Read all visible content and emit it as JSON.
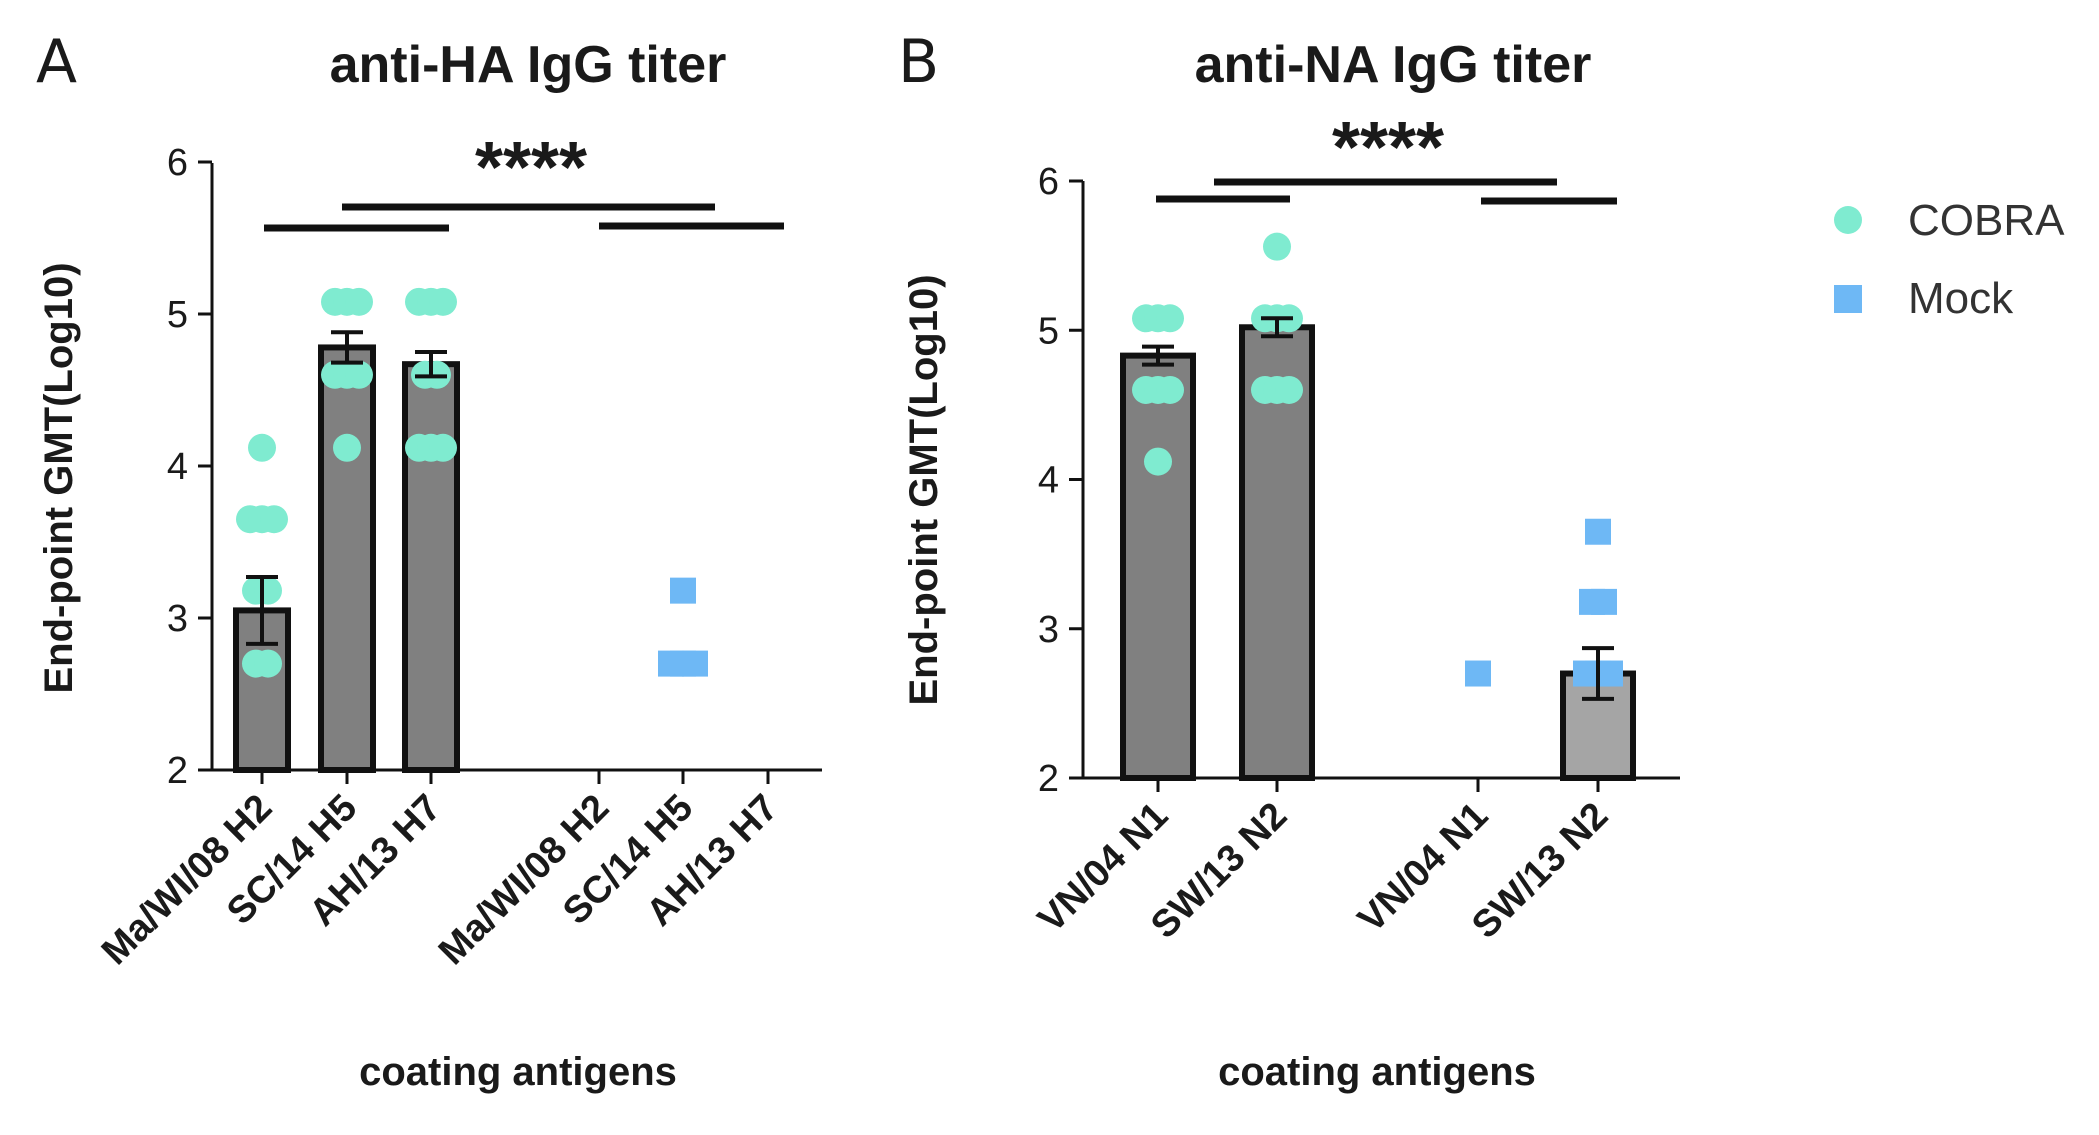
{
  "figure_colors": {
    "cobra": "#7FEBD0",
    "mock": "#6EB8F5",
    "bar_cobra": "#808080",
    "bar_mock": "#A5A5A5",
    "ink": "#111111"
  },
  "legend": {
    "items": [
      {
        "label": "COBRA",
        "marker": "circle",
        "color": "#7FEBD0"
      },
      {
        "label": "Mock",
        "marker": "square",
        "color": "#6EB8F5"
      }
    ]
  },
  "chart_data": [
    {
      "type": "bar",
      "panel": "A",
      "title": "anti-HA IgG titer",
      "xlabel": "coating antigens",
      "ylabel": "End-point GMT(Log10)",
      "ylim": [
        2,
        6
      ],
      "yticks": [
        "2",
        "3",
        "4",
        "5",
        "6"
      ],
      "categories": [
        "Ma/WI/08 H2",
        "SC/14 H5",
        "AH/13 H7",
        "Ma/WI/08 H2",
        "SC/14 H5",
        "AH/13 H7"
      ],
      "groups": [
        "COBRA",
        "COBRA",
        "COBRA",
        "Mock",
        "Mock",
        "Mock"
      ],
      "means": [
        3.05,
        4.78,
        4.67,
        null,
        null,
        null
      ],
      "sem": [
        0.22,
        0.1,
        0.08,
        null,
        null,
        null
      ],
      "points": [
        [
          4.12,
          3.65,
          3.65,
          3.65,
          3.18,
          3.18,
          2.7,
          2.7
        ],
        [
          5.08,
          5.08,
          5.08,
          4.6,
          4.6,
          4.6,
          4.12
        ],
        [
          5.08,
          5.08,
          5.08,
          4.6,
          4.6,
          4.12,
          4.12,
          4.12
        ],
        [],
        [
          3.18,
          2.7,
          2.7,
          2.7
        ],
        []
      ],
      "significance": "****",
      "comparison_bracket_count": 3
    },
    {
      "type": "bar",
      "panel": "B",
      "title": "anti-NA IgG titer",
      "xlabel": "coating antigens",
      "ylabel": "End-point GMT(Log10)",
      "ylim": [
        2,
        6
      ],
      "yticks": [
        "2",
        "3",
        "4",
        "5",
        "6"
      ],
      "categories": [
        "VN/04 N1",
        "SW/13 N2",
        "VN/04 N1",
        "SW/13 N2"
      ],
      "groups": [
        "COBRA",
        "COBRA",
        "Mock",
        "Mock"
      ],
      "means": [
        4.83,
        5.02,
        null,
        2.7
      ],
      "sem": [
        0.06,
        0.06,
        null,
        0.17
      ],
      "points": [
        [
          5.08,
          5.08,
          5.08,
          4.6,
          4.6,
          4.6,
          4.12
        ],
        [
          5.56,
          5.08,
          5.08,
          5.08,
          4.6,
          4.6,
          4.6
        ],
        [
          2.7
        ],
        [
          3.65,
          3.18,
          3.18,
          2.7,
          2.7,
          2.7
        ]
      ],
      "significance": "****",
      "comparison_bracket_count": 3
    }
  ]
}
